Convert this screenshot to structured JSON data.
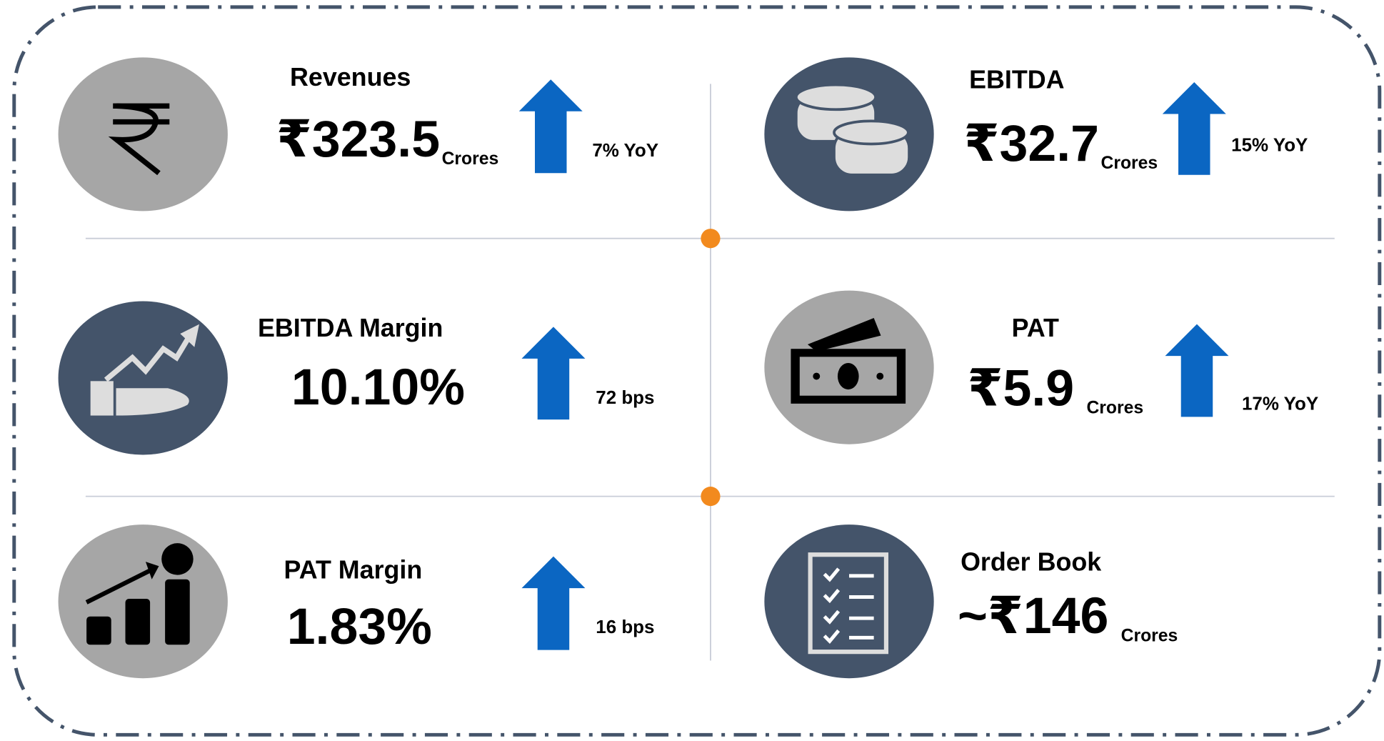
{
  "tiles": [
    {
      "label": "Revenues",
      "value": "₹323.5",
      "unit": "Crores",
      "change": "7% YoY"
    },
    {
      "label": "EBITDA",
      "value": "₹32.7",
      "unit": "Crores",
      "change": "15% YoY"
    },
    {
      "label": "EBITDA Margin",
      "value": "10.10%",
      "change": "72 bps"
    },
    {
      "label": "PAT",
      "value": "₹5.9",
      "unit": "Crores",
      "change": "17% YoY"
    },
    {
      "label": "PAT Margin",
      "value": "1.83%",
      "change": "16 bps"
    },
    {
      "label": "Order Book",
      "value": "~₹146",
      "unit": "Crores"
    }
  ]
}
